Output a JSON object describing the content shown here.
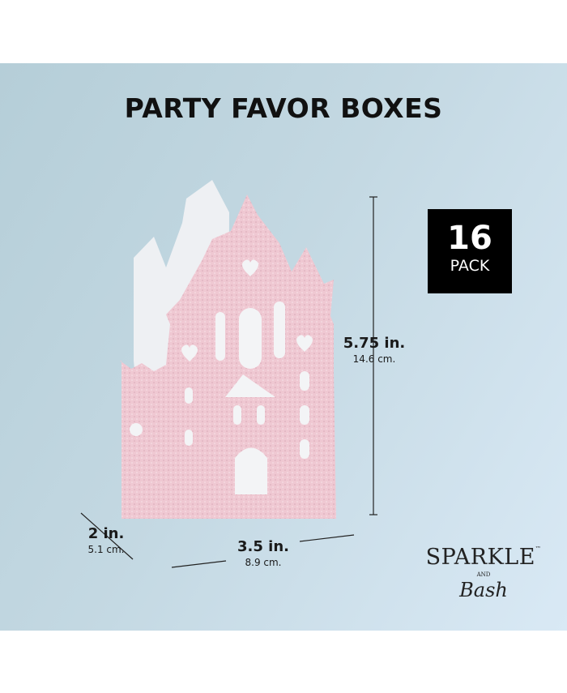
{
  "title": "PARTY FAVOR BOXES",
  "pack": {
    "count": "16",
    "label": "PACK"
  },
  "dimensions": {
    "height": {
      "imperial": "5.75 in.",
      "metric": "14.6 cm."
    },
    "width": {
      "imperial": "3.5 in.",
      "metric": "8.9 cm."
    },
    "depth": {
      "imperial": "2 in.",
      "metric": "5.1 cm."
    }
  },
  "brand": {
    "name": "SPARKLE",
    "tm": "™",
    "and": "AND",
    "script": "Bash"
  },
  "colors": {
    "castle": "#efc9d3",
    "background": "#c3d8e2",
    "pack_badge": "#000000"
  }
}
